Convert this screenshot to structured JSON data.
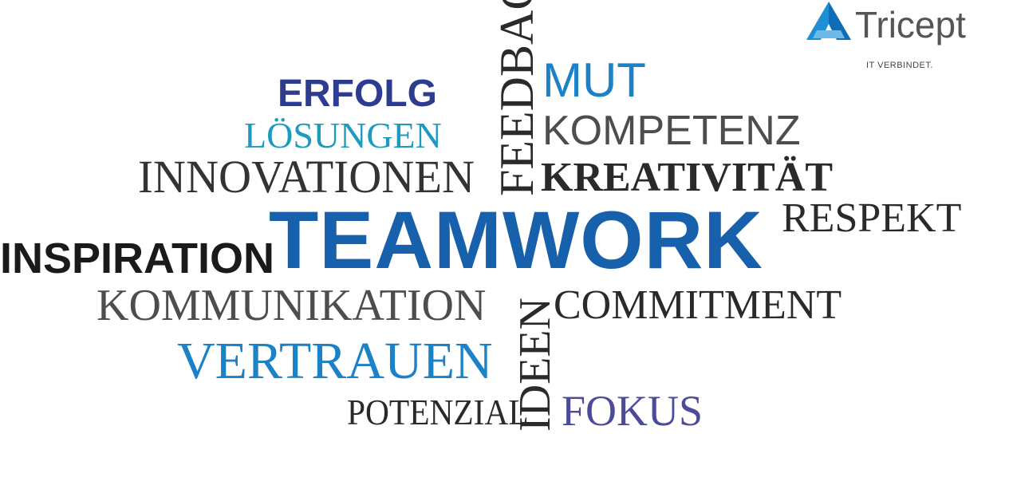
{
  "logo": {
    "name": "Tricept",
    "tagline": "IT VERBINDET.",
    "mark_colors": [
      "#1d8fd6",
      "#0f6db5",
      "#6fb9e8"
    ]
  },
  "words": {
    "erfolg": "ERFOLG",
    "loesungen": "LÖSUNGEN",
    "innovationen": "INNOVATIONEN",
    "feedback": "FEEDBACK",
    "mut": "MUT",
    "kompetenz": "KOMPETENZ",
    "kreativitaet": "KREATIVITÄT",
    "respekt": "RESPEKT",
    "teamwork": "TEAMWORK",
    "inspiration": "INSPIRATION",
    "kommunikation": "KOMMUNIKATION",
    "ideen": "IDEEN",
    "commitment": "COMMITMENT",
    "vertrauen": "VERTRAUEN",
    "potenzial": "POTENZIAL",
    "fokus": "FOKUS"
  },
  "colors": {
    "dark_blue": "#2e3c8f",
    "teal": "#1d9bbf",
    "bright_blue": "#1c82c8",
    "royal_blue": "#1660ac",
    "violet": "#4b4b9a",
    "dark_gray": "#2a2a2a",
    "mid_gray": "#4d4d4d"
  }
}
